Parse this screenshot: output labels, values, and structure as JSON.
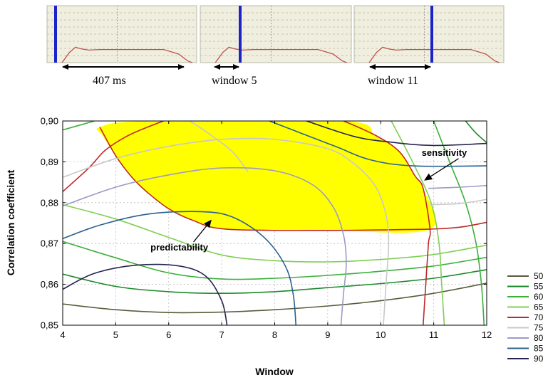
{
  "top_panels": {
    "labels": [
      "407 ms",
      "window 5",
      "window 11"
    ],
    "panel_background": "#f0efdf",
    "marker_color": "#1a22c8",
    "trace_color": "#c0504d"
  },
  "chart_data": {
    "type": "contour",
    "xlabel": "Window",
    "ylabel": "Correlation coefficient",
    "xlim": [
      4,
      12
    ],
    "ylim": [
      0.85,
      0.9
    ],
    "x_ticks": [
      "4",
      "5",
      "6",
      "7",
      "8",
      "9",
      "10",
      "11",
      "12"
    ],
    "y_ticks": [
      "0,85",
      "0,86",
      "0,87",
      "0,88",
      "0,89",
      "0,90"
    ],
    "grid": true,
    "legend_position": "bottom-right",
    "highlight_region": {
      "level": 70,
      "color": "#ffff00",
      "outline": [
        [
          4.7,
          0.8985
        ],
        [
          5.6,
          0.9
        ],
        [
          9.3,
          0.9
        ],
        [
          9.9,
          0.8965
        ],
        [
          10.35,
          0.8925
        ],
        [
          10.65,
          0.8865
        ],
        [
          10.8,
          0.8835
        ],
        [
          10.93,
          0.8735
        ],
        [
          9,
          0.8732
        ],
        [
          7.1,
          0.8735
        ],
        [
          6.45,
          0.8757
        ],
        [
          6.0,
          0.8785
        ],
        [
          5.6,
          0.8825
        ],
        [
          5.3,
          0.8863
        ],
        [
          5.0,
          0.8915
        ],
        [
          4.75,
          0.8965
        ]
      ]
    },
    "annotations": [
      {
        "text": "sensitivity",
        "text_at": [
          11.2,
          0.8915
        ],
        "arrow_to": [
          10.83,
          0.8855
        ]
      },
      {
        "text": "predictability",
        "text_at": [
          6.2,
          0.8683
        ],
        "arrow_to": [
          6.8,
          0.8757
        ]
      }
    ],
    "series": [
      {
        "name": "50",
        "color": "#5b5b3c",
        "lines": [
          [
            [
              4,
              0.8552
            ],
            [
              5,
              0.8538
            ],
            [
              6,
              0.8531
            ],
            [
              7,
              0.8532
            ],
            [
              8,
              0.8538
            ],
            [
              9,
              0.8547
            ],
            [
              10,
              0.856
            ],
            [
              11,
              0.8578
            ],
            [
              12,
              0.8603
            ]
          ]
        ]
      },
      {
        "name": "55",
        "color": "#1b8a2a",
        "lines": [
          [
            [
              4,
              0.8625
            ],
            [
              5,
              0.8595
            ],
            [
              6,
              0.8582
            ],
            [
              7,
              0.8578
            ],
            [
              8,
              0.8582
            ],
            [
              9,
              0.8592
            ],
            [
              10,
              0.8602
            ],
            [
              11,
              0.8615
            ],
            [
              12,
              0.8636
            ]
          ],
          [
            [
              11.6,
              0.9
            ],
            [
              11.8,
              0.897
            ],
            [
              12,
              0.8947
            ]
          ]
        ]
      },
      {
        "name": "60",
        "color": "#3ab03a",
        "lines": [
          [
            [
              4,
              0.8705
            ],
            [
              5,
              0.8665
            ],
            [
              6,
              0.8628
            ],
            [
              7,
              0.8613
            ],
            [
              8,
              0.8615
            ],
            [
              9,
              0.8622
            ],
            [
              10,
              0.8632
            ],
            [
              11,
              0.8645
            ],
            [
              12,
              0.8666
            ]
          ],
          [
            [
              4,
              0.8978
            ],
            [
              4.6,
              0.9
            ]
          ],
          [
            [
              11.0,
              0.9
            ],
            [
              11.3,
              0.89
            ],
            [
              11.6,
              0.88
            ],
            [
              11.8,
              0.87
            ],
            [
              11.9,
              0.86
            ],
            [
              11.95,
              0.85
            ]
          ]
        ]
      },
      {
        "name": "65",
        "color": "#7fcf50",
        "lines": [
          [
            [
              4,
              0.8795
            ],
            [
              5,
              0.876
            ],
            [
              6,
              0.8715
            ],
            [
              7,
              0.8672
            ],
            [
              8,
              0.8658
            ],
            [
              9,
              0.8655
            ],
            [
              10,
              0.8661
            ],
            [
              11,
              0.8673
            ],
            [
              12,
              0.8696
            ]
          ],
          [
            [
              10.2,
              0.9
            ],
            [
              10.6,
              0.89
            ],
            [
              10.95,
              0.88
            ],
            [
              11.1,
              0.87
            ],
            [
              11.15,
              0.86
            ],
            [
              11.2,
              0.85
            ]
          ]
        ]
      },
      {
        "name": "70",
        "color": "#c02828",
        "lines": [
          [
            [
              4,
              0.8827
            ],
            [
              4.5,
              0.8886
            ],
            [
              4.8,
              0.8928
            ],
            [
              5.2,
              0.8962
            ],
            [
              5.6,
              0.8985
            ],
            [
              5.9,
              0.9
            ]
          ],
          [
            [
              9.3,
              0.9
            ],
            [
              9.9,
              0.8965
            ],
            [
              10.35,
              0.8925
            ],
            [
              10.65,
              0.8865
            ],
            [
              10.8,
              0.8835
            ],
            [
              10.93,
              0.8735
            ],
            [
              10.9,
              0.87
            ],
            [
              10.85,
              0.86
            ],
            [
              10.8,
              0.85
            ]
          ],
          [
            [
              10.93,
              0.8735
            ],
            [
              11.5,
              0.874
            ],
            [
              12,
              0.8752
            ]
          ],
          [
            [
              4.7,
              0.8985
            ],
            [
              5.0,
              0.8915
            ],
            [
              5.3,
              0.8863
            ],
            [
              5.6,
              0.8825
            ],
            [
              6.0,
              0.8785
            ],
            [
              6.45,
              0.8757
            ],
            [
              7.1,
              0.8735
            ],
            [
              9,
              0.8732
            ],
            [
              10.93,
              0.8735
            ]
          ]
        ]
      },
      {
        "name": "75",
        "color": "#c8c8c8",
        "lines": [
          [
            [
              4,
              0.8862
            ],
            [
              5,
              0.8908
            ],
            [
              6,
              0.8938
            ],
            [
              7,
              0.8955
            ],
            [
              8,
              0.8955
            ],
            [
              9,
              0.8932
            ],
            [
              9.5,
              0.8895
            ],
            [
              9.9,
              0.884
            ],
            [
              10.1,
              0.877
            ],
            [
              10.15,
              0.87
            ],
            [
              10.1,
              0.86
            ],
            [
              10.05,
              0.85
            ]
          ],
          [
            [
              6.4,
              0.9
            ],
            [
              6.8,
              0.8965
            ],
            [
              7.2,
              0.8925
            ],
            [
              7.5,
              0.8875
            ]
          ],
          [
            [
              10.93,
              0.8795
            ],
            [
              11.5,
              0.8798
            ],
            [
              12,
              0.8808
            ]
          ]
        ]
      },
      {
        "name": "80",
        "color": "#9a9ac8",
        "lines": [
          [
            [
              4,
              0.8792
            ],
            [
              5,
              0.8838
            ],
            [
              6,
              0.8868
            ],
            [
              7,
              0.8885
            ],
            [
              8,
              0.8878
            ],
            [
              8.7,
              0.8845
            ],
            [
              9.1,
              0.879
            ],
            [
              9.3,
              0.872
            ],
            [
              9.35,
              0.865
            ],
            [
              9.3,
              0.858
            ],
            [
              9.25,
              0.85
            ]
          ],
          [
            [
              10.9,
              0.8835
            ],
            [
              11.5,
              0.8838
            ],
            [
              12,
              0.8842
            ]
          ]
        ]
      },
      {
        "name": "85",
        "color": "#2a6090",
        "lines": [
          [
            [
              4,
              0.8712
            ],
            [
              4.7,
              0.8745
            ],
            [
              5.6,
              0.8772
            ],
            [
              6.6,
              0.8778
            ],
            [
              7.2,
              0.8765
            ],
            [
              7.8,
              0.8715
            ],
            [
              8.2,
              0.8645
            ],
            [
              8.35,
              0.8575
            ],
            [
              8.4,
              0.85
            ]
          ],
          [
            [
              7.9,
              0.9
            ],
            [
              8.6,
              0.8965
            ],
            [
              9.2,
              0.8935
            ],
            [
              9.8,
              0.8905
            ],
            [
              10.6,
              0.889
            ],
            [
              12,
              0.889
            ]
          ]
        ]
      },
      {
        "name": "90",
        "color": "#252550",
        "lines": [
          [
            [
              4,
              0.8588
            ],
            [
              4.6,
              0.8627
            ],
            [
              5.4,
              0.8647
            ],
            [
              6.2,
              0.8645
            ],
            [
              6.7,
              0.862
            ],
            [
              7.0,
              0.856
            ],
            [
              7.1,
              0.85
            ]
          ],
          [
            [
              8.6,
              0.9
            ],
            [
              9.5,
              0.8962
            ],
            [
              10.2,
              0.8948
            ],
            [
              11,
              0.894
            ],
            [
              12,
              0.8945
            ]
          ]
        ]
      }
    ]
  }
}
